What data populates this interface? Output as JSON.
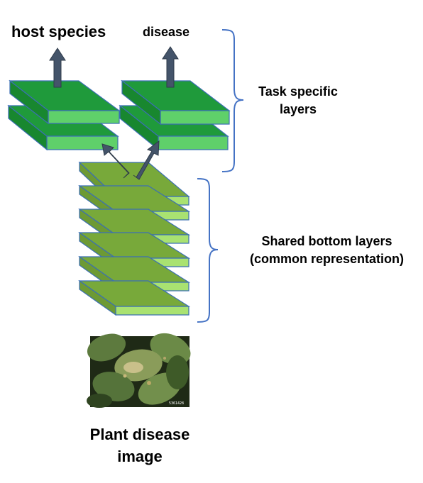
{
  "outputs": {
    "host_species": "host species",
    "disease": "disease"
  },
  "braces": {
    "task_specific_line1": "Task specific",
    "task_specific_line2": "layers",
    "shared_line1": "Shared bottom layers",
    "shared_line2": "(common representation)"
  },
  "input": {
    "caption_line1": "Plant disease",
    "caption_line2": "image",
    "photo_id": "5361428"
  },
  "layers": {
    "task_head_count": 2,
    "layers_per_task_head": 2,
    "shared_count": 6
  },
  "colors": {
    "task_layer_top": "#1f9a3b",
    "task_layer_front": "#5fd06a",
    "shared_layer_top": "#78a93a",
    "shared_layer_front": "#a9e271",
    "layer_outline": "#3b6fb3",
    "arrow_fill": "#44546a",
    "brace": "#4472c4"
  }
}
